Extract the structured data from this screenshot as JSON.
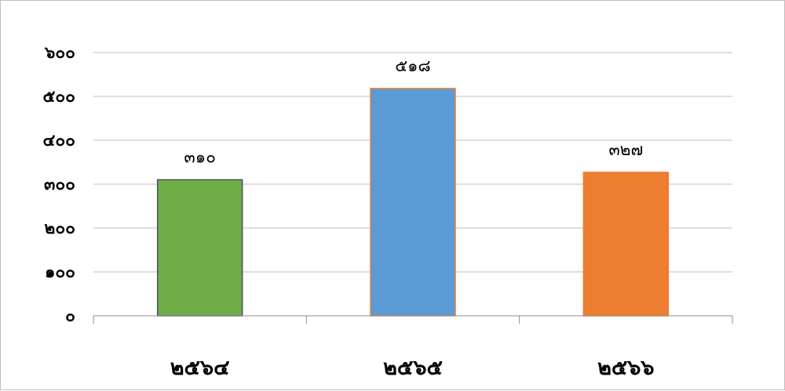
{
  "chart_data": {
    "type": "bar",
    "categories": [
      "๒๕๖๔",
      "๒๕๖๕",
      "๒๕๖๖"
    ],
    "values": [
      310,
      518,
      327
    ],
    "data_labels": [
      "๓๑๐",
      "๕๑๘",
      "๓๒๗"
    ],
    "bar_colors": [
      "#70AD47",
      "#5B9BD5",
      "#ED7D31"
    ],
    "bar_border_colors": [
      "#44546A",
      "#ED7D31",
      "#ED7D31"
    ],
    "ylim": [
      0,
      600
    ],
    "y_ticks": [
      0,
      100,
      200,
      300,
      400,
      500,
      600
    ],
    "y_tick_labels": [
      "๐",
      "๑๐๐",
      "๒๐๐",
      "๓๐๐",
      "๔๐๐",
      "๕๐๐",
      "๖๐๐"
    ],
    "grid": true,
    "legend": "none",
    "title": "",
    "xlabel": "",
    "ylabel": ""
  }
}
